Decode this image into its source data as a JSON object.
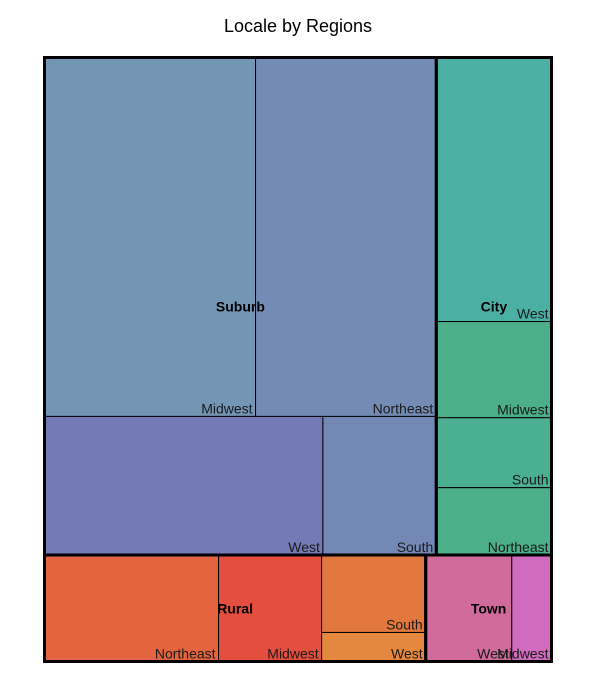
{
  "chart_data": {
    "type": "treemap",
    "title": "Locale by Regions",
    "groups": [
      {
        "name": "Suburb",
        "color": "#7493b5",
        "children": [
          {
            "name": "Midwest",
            "value": 75.2,
            "color": "#7496b5"
          },
          {
            "name": "Northeast",
            "value": 64.4,
            "color": "#748cb5"
          },
          {
            "name": "West",
            "value": 38.3,
            "color": "#747ab5"
          },
          {
            "name": "South",
            "value": 15.6,
            "color": "#7488b5"
          }
        ]
      },
      {
        "name": "City",
        "color": "#4bb09c",
        "children": [
          {
            "name": "West",
            "value": 30.2,
            "color": "#4bb0a3"
          },
          {
            "name": "Midwest",
            "value": 11.0,
            "color": "#4bb08a"
          },
          {
            "name": "South",
            "value": 8.0,
            "color": "#4bb091"
          },
          {
            "name": "Northeast",
            "value": 7.7,
            "color": "#4bb08a"
          }
        ]
      },
      {
        "name": "Rural",
        "color": "#e3643e",
        "children": [
          {
            "name": "Northeast",
            "value": 18.4,
            "color": "#e3643e"
          },
          {
            "name": "Midwest",
            "value": 10.9,
            "color": "#e34e3e"
          },
          {
            "name": "South",
            "value": 8.0,
            "color": "#e3783e"
          },
          {
            "name": "West",
            "value": 3.0,
            "color": "#e3883e"
          }
        ]
      },
      {
        "name": "Town",
        "color": "#d06b9c",
        "children": [
          {
            "name": "West",
            "value": 9.1,
            "color": "#d06b9c"
          },
          {
            "name": "Midwest",
            "value": 4.2,
            "color": "#d06bc0"
          }
        ]
      }
    ]
  }
}
